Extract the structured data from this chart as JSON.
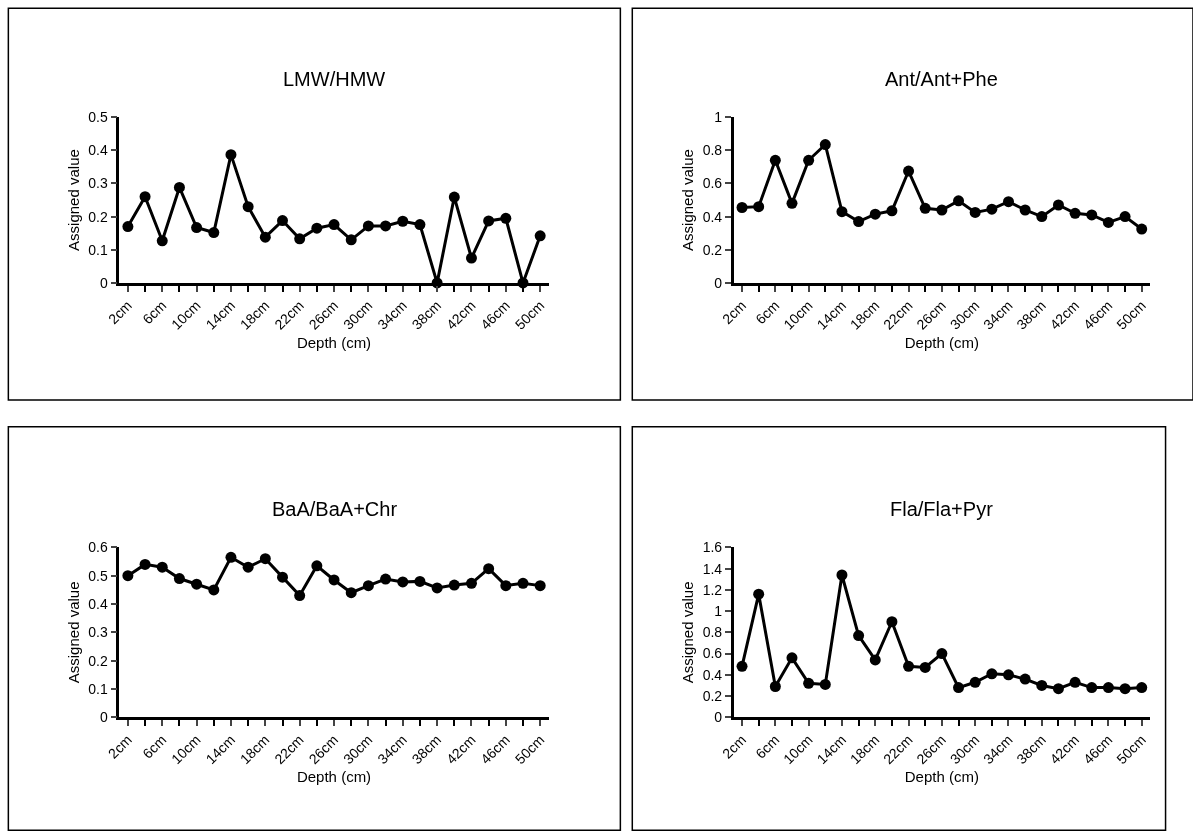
{
  "chart_data": [
    {
      "type": "line",
      "title": "LMW/HMW",
      "xlabel": "Depth (cm)",
      "ylabel": "Assigned value",
      "categories": [
        "2cm",
        null,
        "6cm",
        null,
        "10cm",
        null,
        "14cm",
        null,
        "18cm",
        null,
        "22cm",
        null,
        "26cm",
        null,
        "30cm",
        null,
        "34cm",
        null,
        "38cm",
        null,
        "42cm",
        null,
        "46cm",
        null,
        "50cm"
      ],
      "values": [
        0.17,
        0.26,
        0.127,
        0.288,
        0.167,
        0.152,
        0.387,
        0.23,
        0.138,
        0.188,
        0.133,
        0.165,
        0.176,
        0.13,
        0.172,
        0.172,
        0.186,
        0.176,
        0,
        0.259,
        0.075,
        0.187,
        0.195,
        0,
        0.142
      ],
      "color": "#000000",
      "ylim": [
        0,
        0.5
      ],
      "yticks": [
        0,
        0.1,
        0.2,
        0.3,
        0.4,
        0.5
      ],
      "marker": "circle",
      "line_style": "solid"
    },
    {
      "type": "line",
      "title": "Ant/Ant+Phe",
      "xlabel": "Depth (cm)",
      "ylabel": "Assigned value",
      "categories": [
        "2cm",
        null,
        "6cm",
        null,
        "10cm",
        null,
        "14cm",
        null,
        "18cm",
        null,
        "22cm",
        null,
        "26cm",
        null,
        "30cm",
        null,
        "34cm",
        null,
        "38cm",
        null,
        "42cm",
        null,
        "46cm",
        null,
        "50cm"
      ],
      "values": [
        0.455,
        0.46,
        0.74,
        0.48,
        0.74,
        0.835,
        0.43,
        0.37,
        0.415,
        0.435,
        0.675,
        0.45,
        0.44,
        0.495,
        0.425,
        0.445,
        0.49,
        0.44,
        0.4,
        0.47,
        0.42,
        0.41,
        0.365,
        0.4,
        0.325
      ],
      "color": "#000000",
      "ylim": [
        0,
        1
      ],
      "yticks": [
        0,
        0.2,
        0.4,
        0.6,
        0.8,
        1
      ],
      "marker": "circle",
      "line_style": "solid"
    },
    {
      "type": "line",
      "title": "BaA/BaA+Chr",
      "xlabel": "Depth (cm)",
      "ylabel": "Assigned value",
      "categories": [
        "2cm",
        null,
        "6cm",
        null,
        "10cm",
        null,
        "14cm",
        null,
        "18cm",
        null,
        "22cm",
        null,
        "26cm",
        null,
        "30cm",
        null,
        "34cm",
        null,
        "38cm",
        null,
        "42cm",
        null,
        "46cm",
        null,
        "50cm"
      ],
      "values": [
        0.5,
        0.54,
        0.53,
        0.49,
        0.47,
        0.45,
        0.565,
        0.53,
        0.56,
        0.495,
        0.43,
        0.535,
        0.485,
        0.44,
        0.465,
        0.488,
        0.478,
        0.48,
        0.457,
        0.467,
        0.473,
        0.525,
        0.465,
        0.473,
        0.465
      ],
      "color": "#000000",
      "ylim": [
        0,
        0.6
      ],
      "yticks": [
        0,
        0.1,
        0.2,
        0.3,
        0.4,
        0.5,
        0.6
      ],
      "marker": "circle",
      "line_style": "solid"
    },
    {
      "type": "line",
      "title": "Fla/Fla+Pyr",
      "xlabel": "Depth (cm)",
      "ylabel": "Assigned value",
      "categories": [
        "2cm",
        null,
        "6cm",
        null,
        "10cm",
        null,
        "14cm",
        null,
        "18cm",
        null,
        "22cm",
        null,
        "26cm",
        null,
        "30cm",
        null,
        "34cm",
        null,
        "38cm",
        null,
        "42cm",
        null,
        "46cm",
        null,
        "50cm"
      ],
      "values": [
        0.48,
        1.16,
        0.29,
        0.56,
        0.32,
        0.31,
        1.34,
        0.77,
        0.54,
        0.9,
        0.48,
        0.47,
        0.6,
        0.28,
        0.33,
        0.41,
        0.4,
        0.36,
        0.3,
        0.27,
        0.33,
        0.28,
        0.28,
        0.27,
        0.28
      ],
      "color": "#000000",
      "ylim": [
        0,
        1.6
      ],
      "yticks": [
        0,
        0.2,
        0.4,
        0.6,
        0.8,
        1,
        1.2,
        1.4,
        1.6
      ],
      "marker": "circle",
      "line_style": "solid"
    }
  ]
}
